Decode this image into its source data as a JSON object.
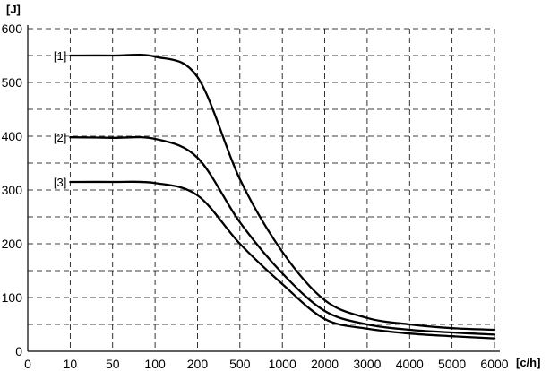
{
  "chart_data": {
    "type": "line",
    "title": "",
    "ylabel": "[J]",
    "xlabel": "[c/h]",
    "x_ticks": [
      "0",
      "10",
      "50",
      "100",
      "200",
      "500",
      "1000",
      "2000",
      "3000",
      "4000",
      "5000",
      "6000"
    ],
    "y_ticks": [
      0,
      100,
      200,
      300,
      400,
      500,
      600
    ],
    "ylim": [
      0,
      600
    ],
    "grid": true,
    "series": [
      {
        "name": "[1]",
        "x": [
          10,
          50,
          100,
          200,
          500,
          1000,
          2000,
          3000,
          4000,
          5000,
          6000
        ],
        "values": [
          550,
          550,
          548,
          510,
          320,
          185,
          95,
          62,
          50,
          43,
          40
        ]
      },
      {
        "name": "[2]",
        "x": [
          10,
          50,
          100,
          200,
          500,
          1000,
          2000,
          3000,
          4000,
          5000,
          6000
        ],
        "values": [
          398,
          397,
          395,
          360,
          240,
          145,
          75,
          50,
          40,
          35,
          31
        ]
      },
      {
        "name": "[3]",
        "x": [
          10,
          50,
          100,
          200,
          500,
          1000,
          2000,
          3000,
          4000,
          5000,
          6000
        ],
        "values": [
          315,
          315,
          313,
          290,
          200,
          125,
          60,
          42,
          33,
          28,
          24
        ]
      }
    ]
  }
}
